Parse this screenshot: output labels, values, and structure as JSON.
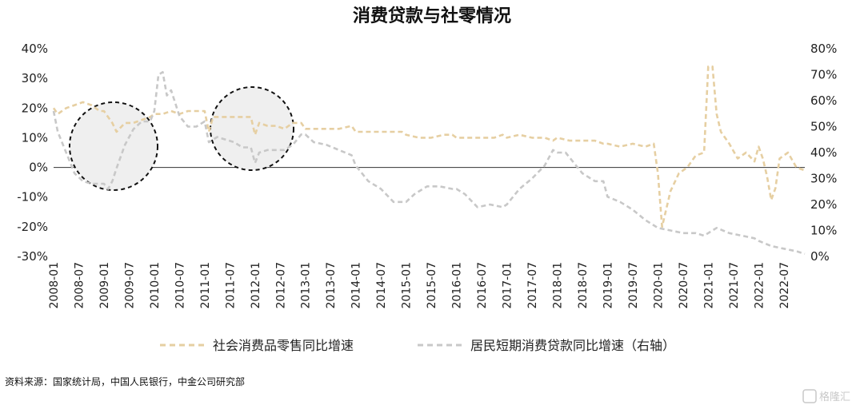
{
  "chart_data": {
    "type": "line",
    "title": "消费贷款与社零情况",
    "source": "资料来源：国家统计局，中国人民银行，中金公司研究部",
    "watermark": "格隆汇",
    "left_axis": {
      "min": -30,
      "max": 40,
      "ticks": [
        "40%",
        "30%",
        "20%",
        "10%",
        "0%",
        "-10%",
        "-20%",
        "-30%"
      ]
    },
    "right_axis": {
      "min": 0,
      "max": 80,
      "ticks": [
        "80%",
        "70%",
        "60%",
        "50%",
        "40%",
        "30%",
        "20%",
        "10%",
        "0%"
      ]
    },
    "x_ticks": [
      "2008-01",
      "2008-07",
      "2009-01",
      "2009-07",
      "2010-01",
      "2010-07",
      "2011-01",
      "2011-07",
      "2012-01",
      "2012-07",
      "2013-01",
      "2013-07",
      "2014-01",
      "2014-07",
      "2015-01",
      "2015-07",
      "2016-01",
      "2016-07",
      "2017-01",
      "2017-07",
      "2018-01",
      "2018-07",
      "2019-01",
      "2019-07",
      "2020-01",
      "2020-07",
      "2021-01",
      "2021-07",
      "2022-01",
      "2022-07"
    ],
    "x_range": [
      "2008-01",
      "2022-12"
    ],
    "grid": false,
    "legend_position": "bottom",
    "series": [
      {
        "name": "社会消费品零售同比增速",
        "axis": "left",
        "color": "#e6cfa2",
        "style": "dashed",
        "points": [
          [
            "2008-01",
            20
          ],
          [
            "2008-02",
            18
          ],
          [
            "2008-04",
            20
          ],
          [
            "2008-06",
            21
          ],
          [
            "2008-08",
            22
          ],
          [
            "2008-10",
            21
          ],
          [
            "2008-12",
            19
          ],
          [
            "2009-01",
            19
          ],
          [
            "2009-03",
            15
          ],
          [
            "2009-04",
            12
          ],
          [
            "2009-06",
            15
          ],
          [
            "2009-08",
            15
          ],
          [
            "2009-10",
            16
          ],
          [
            "2009-12",
            17
          ],
          [
            "2010-01",
            18
          ],
          [
            "2010-03",
            18
          ],
          [
            "2010-05",
            19
          ],
          [
            "2010-07",
            18
          ],
          [
            "2010-09",
            19
          ],
          [
            "2010-11",
            19
          ],
          [
            "2011-01",
            19
          ],
          [
            "2011-02",
            12
          ],
          [
            "2011-03",
            17
          ],
          [
            "2011-05",
            17
          ],
          [
            "2011-07",
            17
          ],
          [
            "2011-09",
            17
          ],
          [
            "2011-11",
            17
          ],
          [
            "2011-12",
            17
          ],
          [
            "2012-01",
            11
          ],
          [
            "2012-02",
            15
          ],
          [
            "2012-04",
            14
          ],
          [
            "2012-06",
            14
          ],
          [
            "2012-08",
            13
          ],
          [
            "2012-10",
            15
          ],
          [
            "2012-12",
            15
          ],
          [
            "2013-01",
            13
          ],
          [
            "2013-03",
            13
          ],
          [
            "2013-06",
            13
          ],
          [
            "2013-09",
            13
          ],
          [
            "2013-12",
            14
          ],
          [
            "2014-01",
            12
          ],
          [
            "2014-04",
            12
          ],
          [
            "2014-07",
            12
          ],
          [
            "2014-10",
            12
          ],
          [
            "2014-12",
            12
          ],
          [
            "2015-01",
            11
          ],
          [
            "2015-04",
            10
          ],
          [
            "2015-07",
            10
          ],
          [
            "2015-10",
            11
          ],
          [
            "2015-12",
            11
          ],
          [
            "2016-01",
            10
          ],
          [
            "2016-04",
            10
          ],
          [
            "2016-07",
            10
          ],
          [
            "2016-10",
            10
          ],
          [
            "2016-12",
            11
          ],
          [
            "2017-01",
            10
          ],
          [
            "2017-04",
            11
          ],
          [
            "2017-07",
            10
          ],
          [
            "2017-10",
            10
          ],
          [
            "2017-12",
            9
          ],
          [
            "2018-01",
            10
          ],
          [
            "2018-04",
            9
          ],
          [
            "2018-07",
            9
          ],
          [
            "2018-10",
            9
          ],
          [
            "2018-12",
            8
          ],
          [
            "2019-01",
            8
          ],
          [
            "2019-04",
            7
          ],
          [
            "2019-07",
            8
          ],
          [
            "2019-10",
            7
          ],
          [
            "2019-12",
            8
          ],
          [
            "2020-01",
            -2
          ],
          [
            "2020-02",
            -20
          ],
          [
            "2020-04",
            -8
          ],
          [
            "2020-06",
            -2
          ],
          [
            "2020-08",
            0
          ],
          [
            "2020-10",
            4
          ],
          [
            "2020-12",
            5
          ],
          [
            "2021-01",
            34
          ],
          [
            "2021-02",
            34
          ],
          [
            "2021-03",
            18
          ],
          [
            "2021-04",
            12
          ],
          [
            "2021-06",
            8
          ],
          [
            "2021-08",
            3
          ],
          [
            "2021-10",
            5
          ],
          [
            "2021-12",
            2
          ],
          [
            "2022-01",
            7
          ],
          [
            "2022-02",
            3
          ],
          [
            "2022-03",
            -3
          ],
          [
            "2022-04",
            -11
          ],
          [
            "2022-05",
            -7
          ],
          [
            "2022-06",
            3
          ],
          [
            "2022-08",
            5
          ],
          [
            "2022-10",
            0
          ],
          [
            "2022-12",
            -1
          ]
        ]
      },
      {
        "name": "居民短期消费贷款同比增速（右轴）",
        "axis": "right",
        "color": "#c8c8c8",
        "style": "dashed",
        "points": [
          [
            "2008-01",
            56
          ],
          [
            "2008-02",
            48
          ],
          [
            "2008-04",
            40
          ],
          [
            "2008-06",
            32
          ],
          [
            "2008-08",
            29
          ],
          [
            "2008-10",
            28
          ],
          [
            "2008-12",
            28
          ],
          [
            "2009-01",
            28
          ],
          [
            "2009-02",
            26
          ],
          [
            "2009-03",
            29
          ],
          [
            "2009-04",
            34
          ],
          [
            "2009-06",
            43
          ],
          [
            "2009-08",
            49
          ],
          [
            "2009-10",
            52
          ],
          [
            "2009-12",
            52
          ],
          [
            "2010-01",
            56
          ],
          [
            "2010-02",
            70
          ],
          [
            "2010-03",
            71
          ],
          [
            "2010-04",
            62
          ],
          [
            "2010-05",
            64
          ],
          [
            "2010-07",
            54
          ],
          [
            "2010-09",
            50
          ],
          [
            "2010-11",
            50
          ],
          [
            "2011-01",
            52
          ],
          [
            "2011-02",
            44
          ],
          [
            "2011-04",
            46
          ],
          [
            "2011-06",
            45
          ],
          [
            "2011-08",
            44
          ],
          [
            "2011-10",
            42
          ],
          [
            "2011-12",
            42
          ],
          [
            "2012-01",
            36
          ],
          [
            "2012-02",
            40
          ],
          [
            "2012-04",
            41
          ],
          [
            "2012-06",
            41
          ],
          [
            "2012-08",
            41
          ],
          [
            "2012-10",
            43
          ],
          [
            "2012-12",
            47
          ],
          [
            "2013-01",
            47
          ],
          [
            "2013-03",
            44
          ],
          [
            "2013-06",
            43
          ],
          [
            "2013-09",
            41
          ],
          [
            "2013-12",
            39
          ],
          [
            "2014-01",
            35
          ],
          [
            "2014-04",
            29
          ],
          [
            "2014-07",
            26
          ],
          [
            "2014-10",
            21
          ],
          [
            "2014-12",
            21
          ],
          [
            "2015-01",
            21
          ],
          [
            "2015-03",
            24
          ],
          [
            "2015-06",
            27
          ],
          [
            "2015-09",
            27
          ],
          [
            "2015-12",
            26
          ],
          [
            "2016-01",
            26
          ],
          [
            "2016-03",
            24
          ],
          [
            "2016-06",
            19
          ],
          [
            "2016-09",
            20
          ],
          [
            "2016-12",
            19
          ],
          [
            "2017-01",
            20
          ],
          [
            "2017-04",
            26
          ],
          [
            "2017-07",
            30
          ],
          [
            "2017-10",
            35
          ],
          [
            "2017-12",
            41
          ],
          [
            "2018-01",
            40
          ],
          [
            "2018-03",
            40
          ],
          [
            "2018-05",
            36
          ],
          [
            "2018-07",
            32
          ],
          [
            "2018-10",
            29
          ],
          [
            "2018-12",
            29
          ],
          [
            "2019-01",
            23
          ],
          [
            "2019-04",
            21
          ],
          [
            "2019-07",
            18
          ],
          [
            "2019-10",
            14
          ],
          [
            "2019-12",
            12
          ],
          [
            "2020-01",
            11
          ],
          [
            "2020-04",
            10
          ],
          [
            "2020-07",
            9
          ],
          [
            "2020-10",
            9
          ],
          [
            "2020-12",
            8
          ],
          [
            "2021-01",
            9
          ],
          [
            "2021-03",
            11
          ],
          [
            "2021-06",
            9
          ],
          [
            "2021-09",
            8
          ],
          [
            "2021-12",
            7
          ],
          [
            "2022-01",
            6
          ],
          [
            "2022-04",
            4
          ],
          [
            "2022-07",
            3
          ],
          [
            "2022-10",
            2
          ],
          [
            "2022-12",
            1
          ]
        ]
      }
    ]
  }
}
